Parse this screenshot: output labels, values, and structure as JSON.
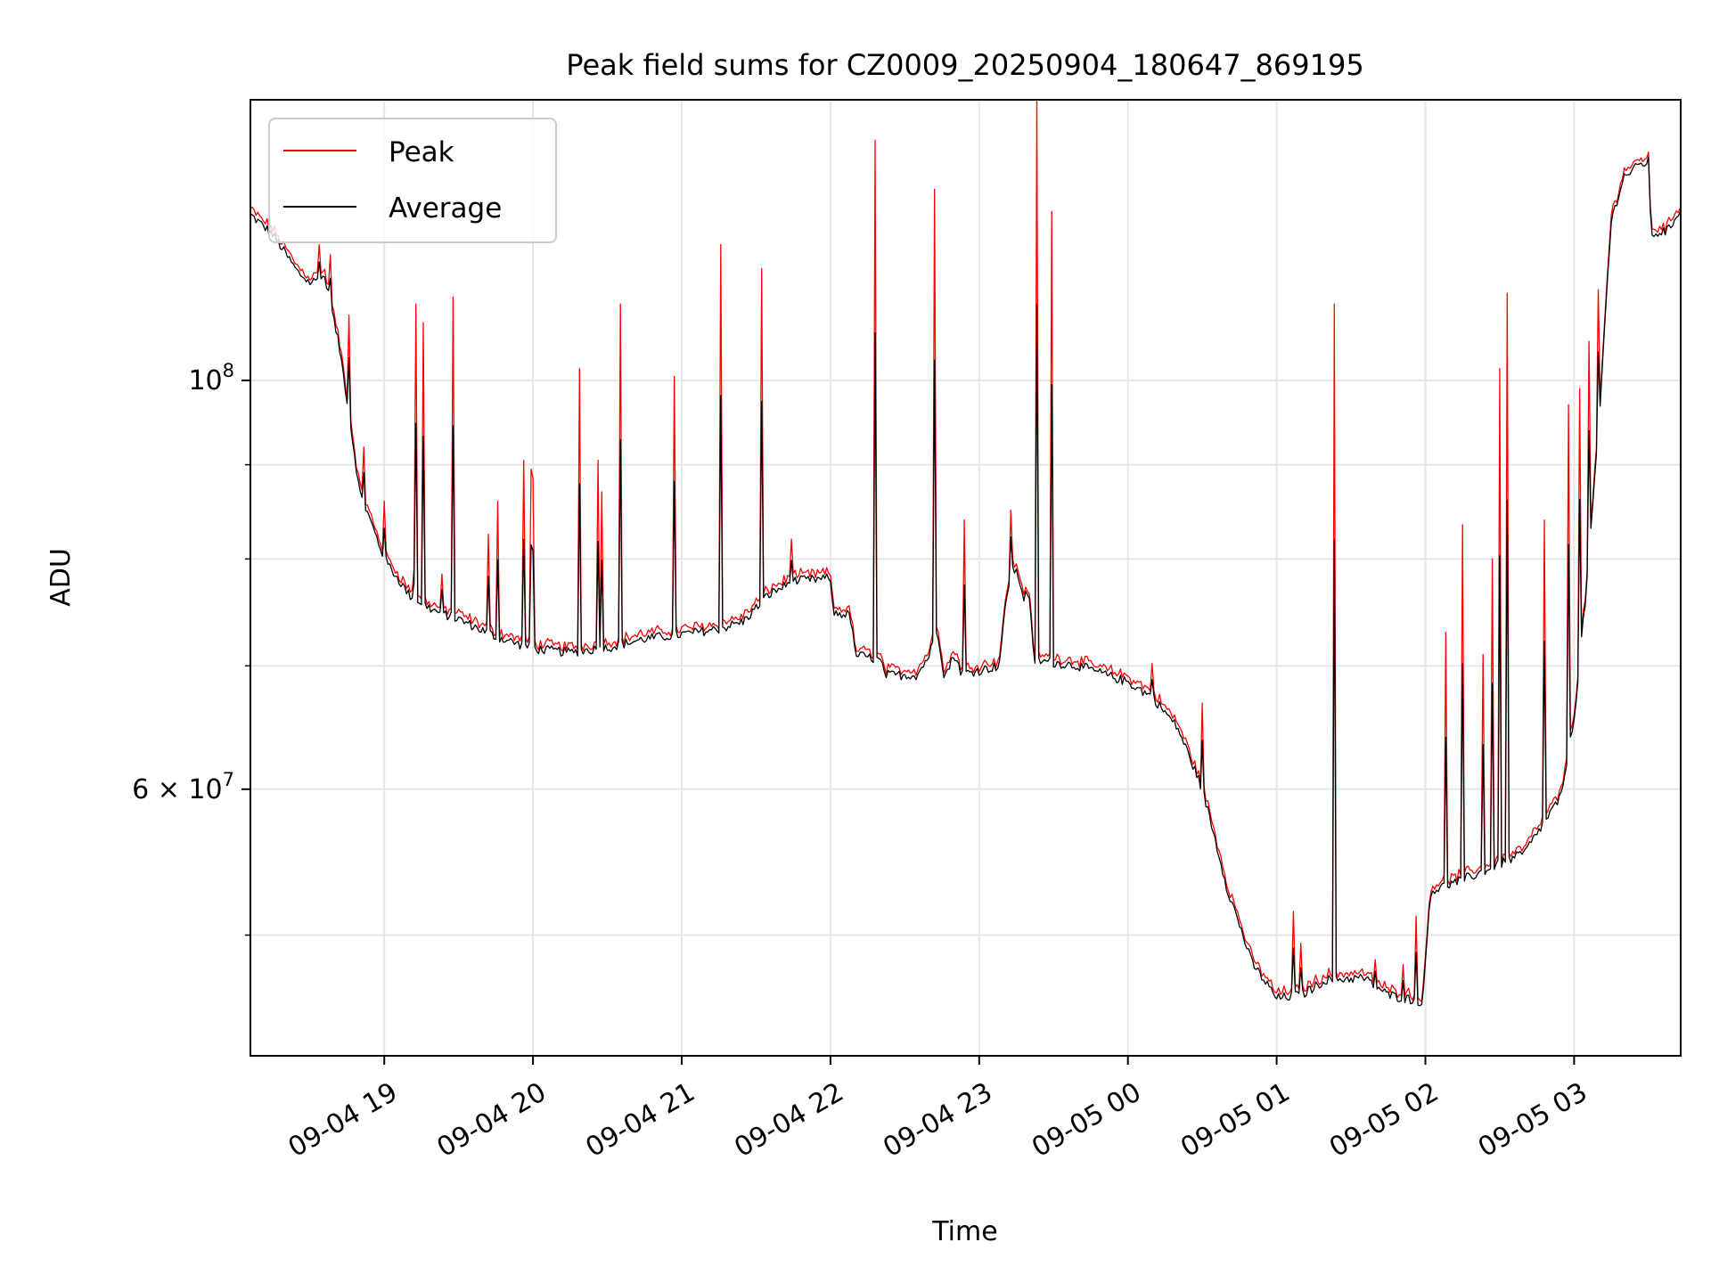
{
  "chart_data": {
    "type": "line",
    "title": "Peak field sums for CZ0009_20250904_180647_869195",
    "xlabel": "Time",
    "ylabel": "ADU",
    "yscale": "log",
    "xlim": [
      "2025-09-04 18:06",
      "2025-09-05 03:43"
    ],
    "ylim": [
      43000000,
      142000000
    ],
    "grid": true,
    "legend": "top-left",
    "x_ticks": [
      "2025-09-04 19:00",
      "2025-09-04 20:00",
      "2025-09-04 21:00",
      "2025-09-04 22:00",
      "2025-09-04 23:00",
      "2025-09-05 00:00",
      "2025-09-05 01:00",
      "2025-09-05 02:00",
      "2025-09-05 03:00"
    ],
    "x_tick_labels": [
      "09-04 19",
      "09-04 20",
      "09-04 21",
      "09-04 22",
      "09-04 23",
      "09-05 00",
      "09-05 01",
      "09-05 02",
      "09-05 03"
    ],
    "y_major_ticks": [
      {
        "value": 100000000,
        "mantissa": "",
        "exponent": "8"
      },
      {
        "value": 60000000,
        "mantissa": "6 × ",
        "exponent": "7"
      }
    ],
    "y_minor_ticks": [
      50000000,
      70000000,
      80000000,
      90000000
    ],
    "colors": {
      "peak": "#ff0000",
      "average": "#000000",
      "grid": "#e6e6e6"
    },
    "average_points": [
      [
        "2025-09-04 18:06",
        123000000
      ],
      [
        "2025-09-04 18:15",
        120000000
      ],
      [
        "2025-09-04 18:25",
        114500000
      ],
      [
        "2025-09-04 18:30",
        113000000
      ],
      [
        "2025-09-04 18:36",
        113800000
      ],
      [
        "2025-09-04 18:42",
        104000000
      ],
      [
        "2025-09-04 18:50",
        87000000
      ],
      [
        "2025-09-04 19:00",
        80000000
      ],
      [
        "2025-09-04 19:10",
        76500000
      ],
      [
        "2025-09-04 19:20",
        75000000
      ],
      [
        "2025-09-04 19:30",
        74200000
      ],
      [
        "2025-09-04 19:45",
        72600000
      ],
      [
        "2025-09-04 20:00",
        71500000
      ],
      [
        "2025-09-04 20:15",
        71200000
      ],
      [
        "2025-09-04 20:30",
        71600000
      ],
      [
        "2025-09-04 20:45",
        72400000
      ],
      [
        "2025-09-04 21:00",
        72800000
      ],
      [
        "2025-09-04 21:15",
        73300000
      ],
      [
        "2025-09-04 21:25",
        74000000
      ],
      [
        "2025-09-04 21:35",
        76500000
      ],
      [
        "2025-09-04 21:45",
        77800000
      ],
      [
        "2025-09-04 22:00",
        78100000
      ],
      [
        "2025-09-04 22:01",
        74800000
      ],
      [
        "2025-09-04 22:08",
        74600000
      ],
      [
        "2025-09-04 22:10",
        71000000
      ],
      [
        "2025-09-04 22:20",
        70500000
      ],
      [
        "2025-09-04 22:22",
        69200000
      ],
      [
        "2025-09-04 22:35",
        69200000
      ],
      [
        "2025-09-04 22:40",
        71000000
      ],
      [
        "2025-09-04 22:43",
        73500000
      ],
      [
        "2025-09-04 22:46",
        69000000
      ],
      [
        "2025-09-04 22:50",
        71000000
      ],
      [
        "2025-09-04 22:53",
        69300000
      ],
      [
        "2025-09-04 23:00",
        69600000
      ],
      [
        "2025-09-04 23:08",
        70000000
      ],
      [
        "2025-09-04 23:11",
        76000000
      ],
      [
        "2025-09-04 23:13",
        79300000
      ],
      [
        "2025-09-04 23:16",
        78200000
      ],
      [
        "2025-09-04 23:18",
        76200000
      ],
      [
        "2025-09-04 23:20",
        77000000
      ],
      [
        "2025-09-04 23:22",
        70500000
      ],
      [
        "2025-09-04 23:40",
        70000000
      ],
      [
        "2025-09-04 23:50",
        69300000
      ],
      [
        "2025-09-05 00:00",
        68600000
      ],
      [
        "2025-09-05 00:10",
        67300000
      ],
      [
        "2025-09-05 00:20",
        64800000
      ],
      [
        "2025-09-05 00:30",
        60000000
      ],
      [
        "2025-09-05 00:40",
        53000000
      ],
      [
        "2025-09-05 00:50",
        48300000
      ],
      [
        "2025-09-05 01:00",
        46200000
      ],
      [
        "2025-09-05 01:10",
        46400000
      ],
      [
        "2025-09-05 01:20",
        47300000
      ],
      [
        "2025-09-05 01:35",
        47400000
      ],
      [
        "2025-09-05 01:45",
        46400000
      ],
      [
        "2025-09-05 01:59",
        46000000
      ],
      [
        "2025-09-05 02:02",
        52800000
      ],
      [
        "2025-09-05 02:20",
        53900000
      ],
      [
        "2025-09-05 02:40",
        55400000
      ],
      [
        "2025-09-05 02:55",
        59500000
      ],
      [
        "2025-09-05 03:00",
        65500000
      ],
      [
        "2025-09-05 03:05",
        77000000
      ],
      [
        "2025-09-05 03:10",
        94000000
      ],
      [
        "2025-09-05 03:15",
        122000000
      ],
      [
        "2025-09-05 03:20",
        129000000
      ],
      [
        "2025-09-05 03:27",
        131000000
      ],
      [
        "2025-09-05 03:30",
        131500000
      ],
      [
        "2025-09-05 03:31",
        120000000
      ],
      [
        "2025-09-05 03:38",
        120600000
      ],
      [
        "2025-09-05 03:43",
        124000000
      ]
    ],
    "peak_spikes": [
      [
        "2025-09-04 18:34",
        118500000
      ],
      [
        "2025-09-04 18:38",
        117000000
      ],
      [
        "2025-09-04 18:46",
        108500000
      ],
      [
        "2025-09-04 18:52",
        92000000
      ],
      [
        "2025-09-04 19:00",
        86000000
      ],
      [
        "2025-09-04 19:12",
        79000000
      ],
      [
        "2025-09-04 19:13",
        110000000
      ],
      [
        "2025-09-04 19:16",
        107500000
      ],
      [
        "2025-09-04 19:23",
        78500000
      ],
      [
        "2025-09-04 19:28",
        111000000
      ],
      [
        "2025-09-04 19:42",
        82500000
      ],
      [
        "2025-09-04 19:46",
        86000000
      ],
      [
        "2025-09-04 19:56",
        90500000
      ],
      [
        "2025-09-04 19:59",
        89500000
      ],
      [
        "2025-09-04 20:00",
        88500000
      ],
      [
        "2025-09-04 20:19",
        101500000
      ],
      [
        "2025-09-04 20:26",
        90500000
      ],
      [
        "2025-09-04 20:28",
        87000000
      ],
      [
        "2025-09-04 20:35",
        110000000
      ],
      [
        "2025-09-04 20:57",
        100500000
      ],
      [
        "2025-09-04 21:16",
        118500000
      ],
      [
        "2025-09-04 21:32",
        115000000
      ],
      [
        "2025-09-04 21:44",
        82000000
      ],
      [
        "2025-09-04 22:18",
        135000000
      ],
      [
        "2025-09-04 22:42",
        127000000
      ],
      [
        "2025-09-04 22:54",
        84000000
      ],
      [
        "2025-09-04 23:13",
        85000000
      ],
      [
        "2025-09-04 23:23",
        142000000
      ],
      [
        "2025-09-04 23:29",
        123500000
      ],
      [
        "2025-09-05 00:10",
        70200000
      ],
      [
        "2025-09-05 00:30",
        66800000
      ],
      [
        "2025-09-05 01:07",
        51500000
      ],
      [
        "2025-09-05 01:10",
        49500000
      ],
      [
        "2025-09-05 01:23",
        110000000
      ],
      [
        "2025-09-05 01:40",
        48500000
      ],
      [
        "2025-09-05 01:51",
        48200000
      ],
      [
        "2025-09-05 01:56",
        51200000
      ],
      [
        "2025-09-05 02:08",
        73000000
      ],
      [
        "2025-09-05 02:15",
        83500000
      ],
      [
        "2025-09-05 02:23",
        71000000
      ],
      [
        "2025-09-05 02:27",
        80000000
      ],
      [
        "2025-09-05 02:30",
        101500000
      ],
      [
        "2025-09-05 02:33",
        111500000
      ],
      [
        "2025-09-05 02:48",
        84000000
      ],
      [
        "2025-09-05 02:58",
        97000000
      ],
      [
        "2025-09-05 03:02",
        99000000
      ],
      [
        "2025-09-05 03:06",
        105000000
      ],
      [
        "2025-09-05 03:10",
        112000000
      ]
    ]
  },
  "legend": {
    "peak_label": "Peak",
    "average_label": "Average"
  }
}
